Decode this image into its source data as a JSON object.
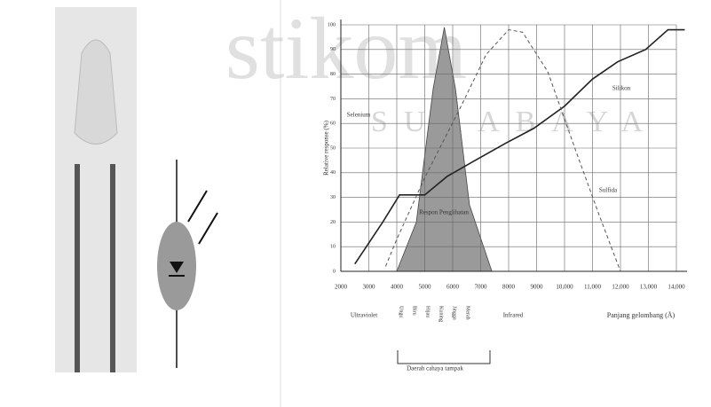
{
  "watermark": {
    "brand": "stikom",
    "city": "SURABAYA"
  },
  "chart_data": {
    "type": "line",
    "y_label": "Relative response (%)",
    "x_label": "Panjang gelombang (Å)",
    "xlim": [
      2000,
      14000
    ],
    "xticks": [
      2000,
      3000,
      4000,
      5000,
      6000,
      7000,
      8000,
      9000,
      {
        "value": 10000,
        "label": "10,000"
      },
      {
        "value": 11000,
        "label": "11,000"
      },
      {
        "value": 12000,
        "label": "12,000"
      },
      {
        "value": 13000,
        "label": "13,000"
      },
      {
        "value": 14000,
        "label": "14,000"
      }
    ],
    "ylim": [
      0,
      100
    ],
    "yticks": [
      0,
      10,
      20,
      30,
      40,
      50,
      60,
      70,
      80,
      90,
      100
    ],
    "grid": true,
    "series": [
      {
        "name": "Silikon",
        "style": "solid",
        "color": "#222222",
        "x": [
          2500,
          3500,
          4100,
          5000,
          5800,
          6800,
          7900,
          8900,
          10000,
          11000,
          11900,
          12900,
          13700,
          14300
        ],
        "values": [
          3,
          20,
          31,
          31,
          38.5,
          45,
          52,
          58,
          67,
          78,
          85,
          90,
          98,
          98
        ]
      },
      {
        "name": "Sulfida",
        "style": "dashed",
        "color": "#555555",
        "x": [
          3600,
          4000,
          5000,
          6300,
          7200,
          8000,
          8500,
          9400,
          10400,
          11200,
          12000
        ],
        "values": [
          2,
          13,
          38,
          67,
          88,
          98,
          97,
          81,
          49,
          24,
          0
        ]
      },
      {
        "name": "Respon Penglihatan",
        "style": "area",
        "color": "#9a9a9a",
        "x": [
          4000,
          4700,
          5300,
          5700,
          6100,
          6600,
          7400
        ],
        "values": [
          0,
          20,
          74,
          99,
          74,
          27,
          0
        ]
      }
    ],
    "annotations": [
      "Selenium",
      "Ultraviolet",
      "Infrared",
      "Daerah cahaya tampak"
    ],
    "colors": [
      "Ungu",
      "Biru",
      "Hijau",
      "Kuning",
      "Jingga",
      "Merah"
    ]
  }
}
